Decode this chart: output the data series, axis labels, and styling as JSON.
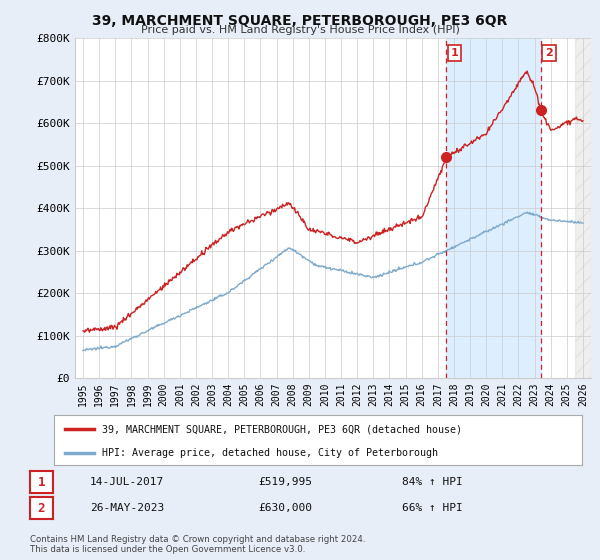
{
  "title": "39, MARCHMENT SQUARE, PETERBOROUGH, PE3 6QR",
  "subtitle": "Price paid vs. HM Land Registry's House Price Index (HPI)",
  "ylabel_ticks": [
    "£0",
    "£100K",
    "£200K",
    "£300K",
    "£400K",
    "£500K",
    "£600K",
    "£700K",
    "£800K"
  ],
  "ytick_values": [
    0,
    100000,
    200000,
    300000,
    400000,
    500000,
    600000,
    700000,
    800000
  ],
  "ylim": [
    0,
    800000
  ],
  "xlim_left": 1994.5,
  "xlim_right": 2026.5,
  "hpi_color": "#7eaacc",
  "price_color": "#cc2222",
  "marker1_year": 2017.53,
  "marker1_price": 519995,
  "marker2_year": 2023.4,
  "marker2_price": 630000,
  "shade_color": "#ddeeff",
  "hatch_start": 2025.5,
  "legend_line1": "39, MARCHMENT SQUARE, PETERBOROUGH, PE3 6QR (detached house)",
  "legend_line2": "HPI: Average price, detached house, City of Peterborough",
  "ann1_date": "14-JUL-2017",
  "ann1_price": "£519,995",
  "ann1_hpi": "84% ↑ HPI",
  "ann2_date": "26-MAY-2023",
  "ann2_price": "£630,000",
  "ann2_hpi": "66% ↑ HPI",
  "footer": "Contains HM Land Registry data © Crown copyright and database right 2024.\nThis data is licensed under the Open Government Licence v3.0.",
  "bg_color": "#e8eef8",
  "plot_bg": "#ffffff",
  "grid_color": "#cccccc"
}
